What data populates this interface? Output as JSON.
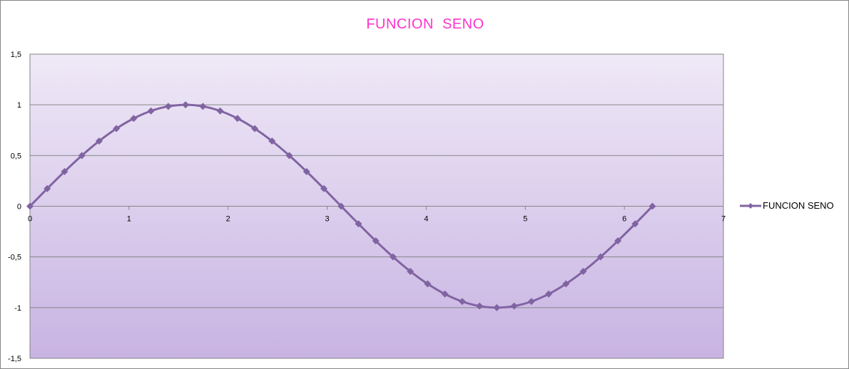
{
  "chart_data": {
    "type": "scatter-smooth-line",
    "title": "FUNCION  SENO",
    "xlim": [
      0,
      7
    ],
    "ylim": [
      -1.5,
      1.5
    ],
    "x_ticks": [
      "0",
      "1",
      "2",
      "3",
      "4",
      "5",
      "6",
      "7"
    ],
    "y_ticks": [
      "1,5",
      "1",
      "0,5",
      "0",
      "-0,5",
      "-1",
      "-1,5"
    ],
    "grid": "horizontal major",
    "legend": "right",
    "colors": {
      "series": "#8064a2",
      "title": "#ff33cc",
      "plot_top": "#efe9f7",
      "plot_bottom": "#c8b3e2"
    },
    "series": [
      {
        "name": "FUNCION SENO",
        "marker": "diamond",
        "x": [
          0,
          0.1745,
          0.3491,
          0.5236,
          0.6981,
          0.8727,
          1.0472,
          1.2217,
          1.3963,
          1.5708,
          1.7453,
          1.9199,
          2.0944,
          2.2689,
          2.4435,
          2.618,
          2.7925,
          2.9671,
          3.1416,
          3.3161,
          3.4907,
          3.6652,
          3.8397,
          4.0143,
          4.1888,
          4.3633,
          4.5379,
          4.7124,
          4.8869,
          5.0615,
          5.236,
          5.4105,
          5.5851,
          5.7596,
          5.9341,
          6.1087,
          6.2832
        ],
        "y": [
          0,
          0.1736,
          0.342,
          0.5,
          0.6428,
          0.766,
          0.866,
          0.9397,
          0.9848,
          1,
          0.9848,
          0.9397,
          0.866,
          0.766,
          0.6428,
          0.5,
          0.342,
          0.1736,
          0,
          -0.1736,
          -0.342,
          -0.5,
          -0.6428,
          -0.766,
          -0.866,
          -0.9397,
          -0.9848,
          -1,
          -0.9848,
          -0.9397,
          -0.866,
          -0.766,
          -0.6428,
          -0.5,
          -0.342,
          -0.1736,
          0
        ]
      }
    ]
  }
}
